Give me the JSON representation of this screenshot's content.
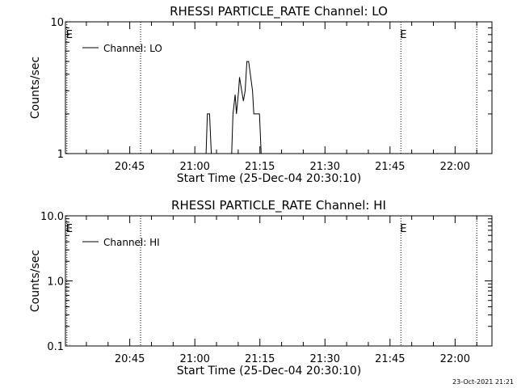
{
  "chart_data": [
    {
      "type": "line",
      "title": "RHESSI PARTICLE_RATE Channel: LO",
      "xlabel": "Start Time (25-Dec-04 20:30:10)",
      "ylabel": "Counts/sec",
      "y_scale": "log",
      "ylim": [
        1,
        10
      ],
      "y_tick_labels": [
        "1",
        "10"
      ],
      "x_tick_labels": [
        "20:45",
        "21:00",
        "21:15",
        "21:30",
        "21:45",
        "22:00"
      ],
      "x_ticks_min": [
        45,
        60,
        75,
        90,
        105,
        120
      ],
      "xlim_min": [
        30.17,
        128.5
      ],
      "grid": false,
      "legend": {
        "label": "Channel: LO",
        "placement": "top-left"
      },
      "markers": [
        {
          "label": "E",
          "x_min": 30.5
        },
        {
          "label": "",
          "x_min": 47.5
        },
        {
          "label": "E",
          "x_min": 107.5
        },
        {
          "label": "",
          "x_min": 125
        }
      ],
      "series": [
        {
          "name": "Channel: LO",
          "x_min": [
            62.6,
            62.9,
            63.4,
            63.8,
            68.5,
            68.8,
            69.3,
            69.6,
            70.1,
            70.3,
            70.8,
            71.2,
            71.6,
            72.0,
            72.4,
            72.8,
            73.3,
            73.6,
            74.1,
            74.5,
            74.9,
            75.3,
            75.4
          ],
          "y": [
            1,
            2,
            2,
            1,
            1,
            2,
            2.8,
            2,
            3,
            3.8,
            3,
            2.5,
            3,
            5,
            5,
            4,
            3,
            2,
            2,
            2,
            2,
            1,
            1
          ]
        }
      ]
    },
    {
      "type": "line",
      "title": "RHESSI PARTICLE_RATE Channel: HI",
      "xlabel": "Start Time (25-Dec-04 20:30:10)",
      "ylabel": "Counts/sec",
      "y_scale": "log",
      "ylim": [
        0.1,
        10
      ],
      "y_tick_labels": [
        "0.1",
        "1.0",
        "10.0"
      ],
      "x_tick_labels": [
        "20:45",
        "21:00",
        "21:15",
        "21:30",
        "21:45",
        "22:00"
      ],
      "x_ticks_min": [
        45,
        60,
        75,
        90,
        105,
        120
      ],
      "xlim_min": [
        30.17,
        128.5
      ],
      "grid": false,
      "legend": {
        "label": "Channel: HI",
        "placement": "top-left"
      },
      "markers": [
        {
          "label": "E",
          "x_min": 30.5
        },
        {
          "label": "",
          "x_min": 47.5
        },
        {
          "label": "E",
          "x_min": 107.5
        },
        {
          "label": "",
          "x_min": 125
        }
      ],
      "series": [
        {
          "name": "Channel: HI",
          "x_min": [],
          "y": []
        }
      ]
    }
  ],
  "footer": {
    "timestamp": "23-Oct-2021 21:21"
  }
}
